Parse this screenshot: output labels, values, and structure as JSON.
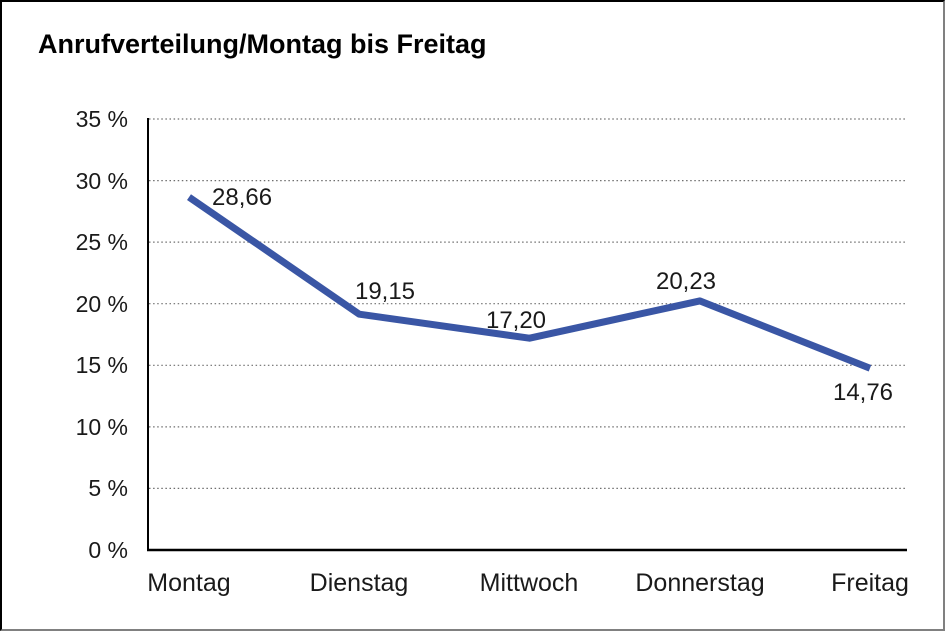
{
  "window": {
    "background_color": "#ffffff",
    "frame_border_color": "#000000"
  },
  "chart_data": {
    "type": "line",
    "title": "Anrufverteilung/Montag bis Freitag",
    "categories": [
      "Montag",
      "Dienstag",
      "Mittwoch",
      "Donnerstag",
      "Freitag"
    ],
    "series": [
      {
        "name": "Anrufverteilung",
        "values": [
          28.66,
          19.15,
          17.2,
          20.23,
          14.76
        ]
      }
    ],
    "values": [
      28.66,
      19.15,
      17.2,
      20.23,
      14.76
    ],
    "point_labels": [
      "28,66",
      "19,15",
      "17,20",
      "20,23",
      "14,76"
    ],
    "y_ticks": [
      "35 %",
      "30 %",
      "25 %",
      "20 %",
      "15 %",
      "10 %",
      "5 %",
      "0 %"
    ],
    "ylim": [
      0,
      35
    ],
    "y_step": 5,
    "xlabel": "",
    "ylabel": "",
    "legend": "none",
    "grid": "horizontal-dotted",
    "line_color": "#3A56A5",
    "grid_color": "#6e6e6e",
    "axis_color": "#000000",
    "text_color": "#1a1a1a"
  }
}
